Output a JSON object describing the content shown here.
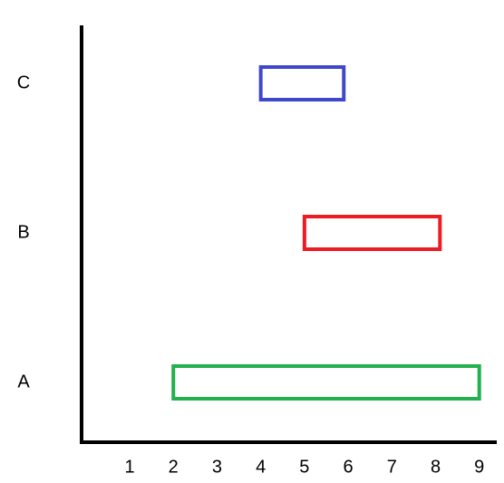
{
  "chart_data": {
    "type": "range",
    "categories": [
      "A",
      "B",
      "C"
    ],
    "starts": [
      2,
      5,
      4
    ],
    "ends": [
      9,
      8.1,
      5.9
    ],
    "colors": [
      "#22b14c",
      "#ed1c24",
      "#3f48cc"
    ],
    "xlim": [
      -0.1,
      9.4
    ],
    "xticks": [
      1,
      2,
      3,
      4,
      5,
      6,
      7,
      8,
      9
    ]
  }
}
